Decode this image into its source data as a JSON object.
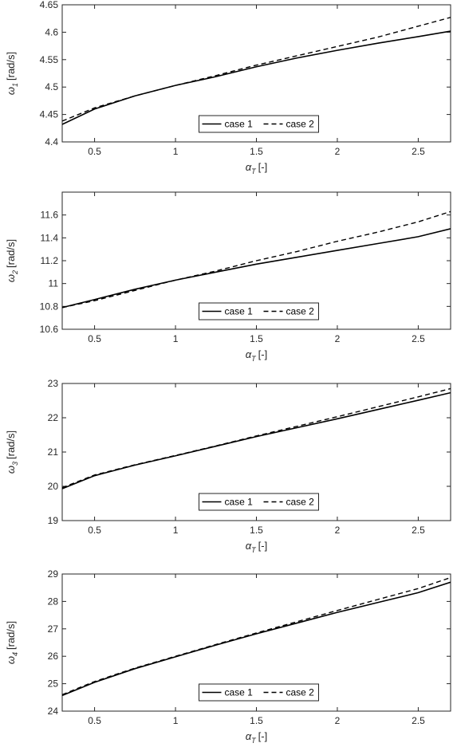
{
  "chart_data": [
    {
      "type": "line",
      "xlabel_symbol": "α",
      "xlabel_sub": "T",
      "xlabel_unit": "[-]",
      "ylabel_symbol": "ω",
      "ylabel_sub": "1",
      "ylabel_unit": "[rad/s]",
      "xlim": [
        0.3,
        2.7
      ],
      "ylim": [
        4.4,
        4.65
      ],
      "xticks": [
        "0.5",
        "1",
        "1.5",
        "2",
        "2.5"
      ],
      "xtick_values": [
        0.5,
        1,
        1.5,
        2,
        2.5
      ],
      "yticks": [
        "4.4",
        "4.45",
        "4.5",
        "4.55",
        "4.6",
        "4.65"
      ],
      "ytick_values": [
        4.4,
        4.45,
        4.5,
        4.55,
        4.6,
        4.65
      ],
      "grid": false,
      "legend": "bottom-center",
      "x": [
        0.3,
        0.5,
        0.75,
        1.0,
        1.25,
        1.5,
        1.75,
        2.0,
        2.25,
        2.5,
        2.7
      ],
      "series": [
        {
          "name": "case 1",
          "style": "solid",
          "values": [
            4.432,
            4.46,
            4.484,
            4.503,
            4.519,
            4.537,
            4.553,
            4.567,
            4.58,
            4.592,
            4.602
          ]
        },
        {
          "name": "case 2",
          "style": "dashed",
          "values": [
            4.438,
            4.462,
            4.484,
            4.503,
            4.521,
            4.54,
            4.557,
            4.574,
            4.591,
            4.611,
            4.627
          ]
        }
      ]
    },
    {
      "type": "line",
      "xlabel_symbol": "α",
      "xlabel_sub": "T",
      "xlabel_unit": "[-]",
      "ylabel_symbol": "ω",
      "ylabel_sub": "2",
      "ylabel_unit": "[rad/s]",
      "xlim": [
        0.3,
        2.7
      ],
      "ylim": [
        10.6,
        11.8
      ],
      "xticks": [
        "0.5",
        "1",
        "1.5",
        "2",
        "2.5"
      ],
      "xtick_values": [
        0.5,
        1,
        1.5,
        2,
        2.5
      ],
      "yticks": [
        "10.6",
        "10.8",
        "11",
        "11.2",
        "11.4",
        "11.6"
      ],
      "ytick_values": [
        10.6,
        10.8,
        11.0,
        11.2,
        11.4,
        11.6
      ],
      "grid": false,
      "legend": "bottom-center",
      "x": [
        0.3,
        0.5,
        0.75,
        1.0,
        1.25,
        1.5,
        1.75,
        2.0,
        2.25,
        2.5,
        2.7
      ],
      "series": [
        {
          "name": "case 1",
          "style": "solid",
          "values": [
            10.79,
            10.86,
            10.95,
            11.03,
            11.1,
            11.17,
            11.23,
            11.29,
            11.35,
            11.41,
            11.48
          ]
        },
        {
          "name": "case 2",
          "style": "dashed",
          "values": [
            10.79,
            10.85,
            10.94,
            11.03,
            11.11,
            11.2,
            11.28,
            11.37,
            11.45,
            11.54,
            11.63
          ]
        }
      ]
    },
    {
      "type": "line",
      "xlabel_symbol": "α",
      "xlabel_sub": "T",
      "xlabel_unit": "[-]",
      "ylabel_symbol": "ω",
      "ylabel_sub": "3",
      "ylabel_unit": "[rad/s]",
      "xlim": [
        0.3,
        2.7
      ],
      "ylim": [
        19,
        23
      ],
      "xticks": [
        "0.5",
        "1",
        "1.5",
        "2",
        "2.5"
      ],
      "xtick_values": [
        0.5,
        1,
        1.5,
        2,
        2.5
      ],
      "yticks": [
        "19",
        "20",
        "21",
        "22",
        "23"
      ],
      "ytick_values": [
        19,
        20,
        21,
        22,
        23
      ],
      "grid": false,
      "legend": "bottom-center",
      "x": [
        0.3,
        0.5,
        0.75,
        1.0,
        1.25,
        1.5,
        1.75,
        2.0,
        2.25,
        2.5,
        2.7
      ],
      "series": [
        {
          "name": "case 1",
          "style": "solid",
          "values": [
            19.93,
            20.31,
            20.62,
            20.89,
            21.17,
            21.45,
            21.71,
            21.97,
            22.24,
            22.51,
            22.73
          ]
        },
        {
          "name": "case 2",
          "style": "dashed",
          "values": [
            19.96,
            20.33,
            20.63,
            20.9,
            21.18,
            21.47,
            21.75,
            22.03,
            22.32,
            22.61,
            22.85
          ]
        }
      ]
    },
    {
      "type": "line",
      "xlabel_symbol": "α",
      "xlabel_sub": "T",
      "xlabel_unit": "[-]",
      "ylabel_symbol": "ω",
      "ylabel_sub": "4",
      "ylabel_unit": "[rad/s]",
      "xlim": [
        0.3,
        2.7
      ],
      "ylim": [
        24,
        29
      ],
      "xticks": [
        "0.5",
        "1",
        "1.5",
        "2",
        "2.5"
      ],
      "xtick_values": [
        0.5,
        1,
        1.5,
        2,
        2.5
      ],
      "yticks": [
        "24",
        "25",
        "26",
        "27",
        "28",
        "29"
      ],
      "ytick_values": [
        24,
        25,
        26,
        27,
        28,
        29
      ],
      "grid": false,
      "legend": "bottom-center",
      "x": [
        0.3,
        0.5,
        0.75,
        1.0,
        1.25,
        1.5,
        1.75,
        2.0,
        2.25,
        2.5,
        2.7
      ],
      "series": [
        {
          "name": "case 1",
          "style": "solid",
          "values": [
            24.57,
            25.05,
            25.55,
            25.98,
            26.41,
            26.82,
            27.21,
            27.6,
            27.96,
            28.32,
            28.7
          ]
        },
        {
          "name": "case 2",
          "style": "dashed",
          "values": [
            24.6,
            25.08,
            25.57,
            26.0,
            26.43,
            26.85,
            27.26,
            27.67,
            28.07,
            28.47,
            28.87
          ]
        }
      ]
    }
  ]
}
